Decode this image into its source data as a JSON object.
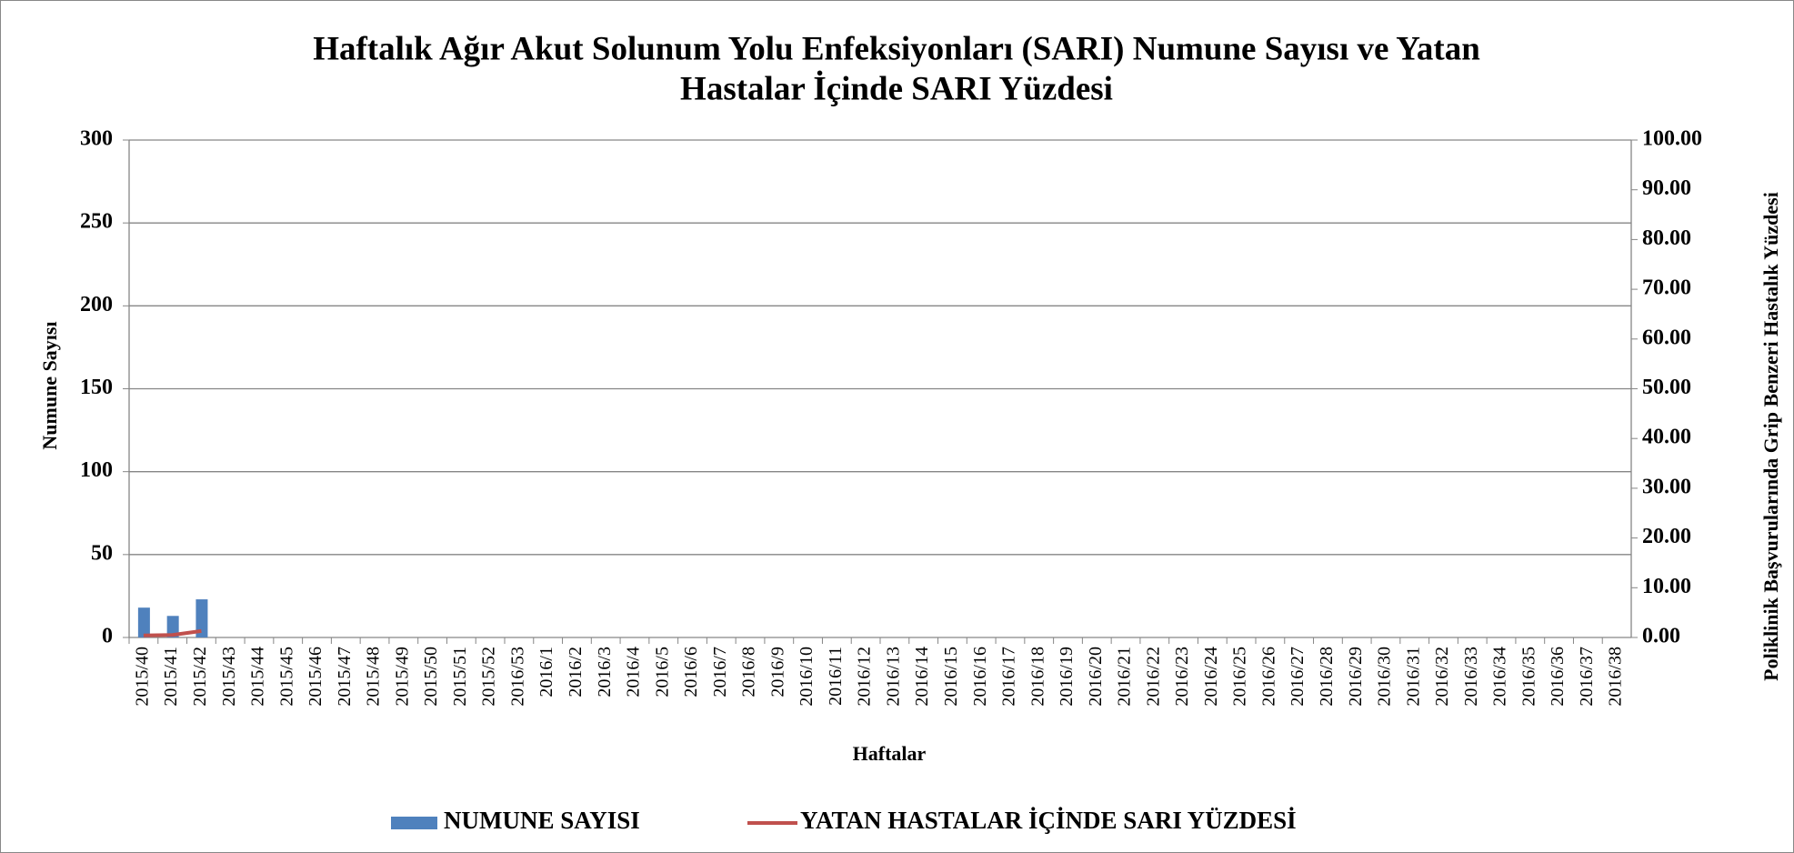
{
  "chart_data": {
    "type": "bar",
    "title": [
      "Haftalık Ağır Akut Solunum Yolu Enfeksiyonları (SARI) Numune Sayısı ve Yatan",
      "Hastalar İçinde SARI Yüzdesi"
    ],
    "xlabel": "Haftalar",
    "ylabel": "Numune  Sayısı",
    "y2label": "Poliklinik Başvurularında Grip Benzeri Hastalık Yüzdesi",
    "categories": [
      "2015/40",
      "2015/41",
      "2015/42",
      "2015/43",
      "2015/44",
      "2015/45",
      "2015/46",
      "2015/47",
      "2015/48",
      "2015/49",
      "2015/50",
      "2015/51",
      "2015/52",
      "2016/53",
      "2016/1",
      "2016/2",
      "2016/3",
      "2016/4",
      "2016/5",
      "2016/6",
      "2016/7",
      "2016/8",
      "2016/9",
      "2016/10",
      "2016/11",
      "2016/12",
      "2016/13",
      "2016/14",
      "2016/15",
      "2016/16",
      "2016/17",
      "2016/18",
      "2016/19",
      "2016/20",
      "2016/21",
      "2016/22",
      "2016/23",
      "2016/24",
      "2016/25",
      "2016/26",
      "2016/27",
      "2016/28",
      "2016/29",
      "2016/30",
      "2016/31",
      "2016/32",
      "2016/33",
      "2016/34",
      "2016/35",
      "2016/36",
      "2016/37",
      "2016/38"
    ],
    "series": [
      {
        "name": "NUMUNE SAYISI",
        "type": "bar",
        "color": "#4f81bd",
        "values": [
          18,
          13,
          23,
          null,
          null,
          null,
          null,
          null,
          null,
          null,
          null,
          null,
          null,
          null,
          null,
          null,
          null,
          null,
          null,
          null,
          null,
          null,
          null,
          null,
          null,
          null,
          null,
          null,
          null,
          null,
          null,
          null,
          null,
          null,
          null,
          null,
          null,
          null,
          null,
          null,
          null,
          null,
          null,
          null,
          null,
          null,
          null,
          null,
          null,
          null,
          null,
          null
        ]
      },
      {
        "name": "YATAN HASTALAR İÇİNDE SARI  YÜZDESİ",
        "type": "line",
        "axis": "y2",
        "color": "#c0504d",
        "values": [
          0.4,
          0.5,
          1.3,
          null,
          null,
          null,
          null,
          null,
          null,
          null,
          null,
          null,
          null,
          null,
          null,
          null,
          null,
          null,
          null,
          null,
          null,
          null,
          null,
          null,
          null,
          null,
          null,
          null,
          null,
          null,
          null,
          null,
          null,
          null,
          null,
          null,
          null,
          null,
          null,
          null,
          null,
          null,
          null,
          null,
          null,
          null,
          null,
          null,
          null,
          null,
          null,
          null
        ]
      }
    ],
    "ylim": [
      0,
      300
    ],
    "yticks": [
      0,
      50,
      100,
      150,
      200,
      250,
      300
    ],
    "y2lim": [
      0,
      100
    ],
    "y2ticks": [
      {
        "value": 0,
        "label": "0.00"
      },
      {
        "value": 10,
        "label": "10.00"
      },
      {
        "value": 20,
        "label": "20.00"
      },
      {
        "value": 30,
        "label": "30.00"
      },
      {
        "value": 40,
        "label": "40.00"
      },
      {
        "value": 50,
        "label": "50.00"
      },
      {
        "value": 60,
        "label": "60.00"
      },
      {
        "value": 70,
        "label": "70.00"
      },
      {
        "value": 80,
        "label": "80.00"
      },
      {
        "value": 90,
        "label": "90.00"
      },
      {
        "value": 100,
        "label": "100.00"
      }
    ],
    "grid": true,
    "legend": "bottom"
  }
}
